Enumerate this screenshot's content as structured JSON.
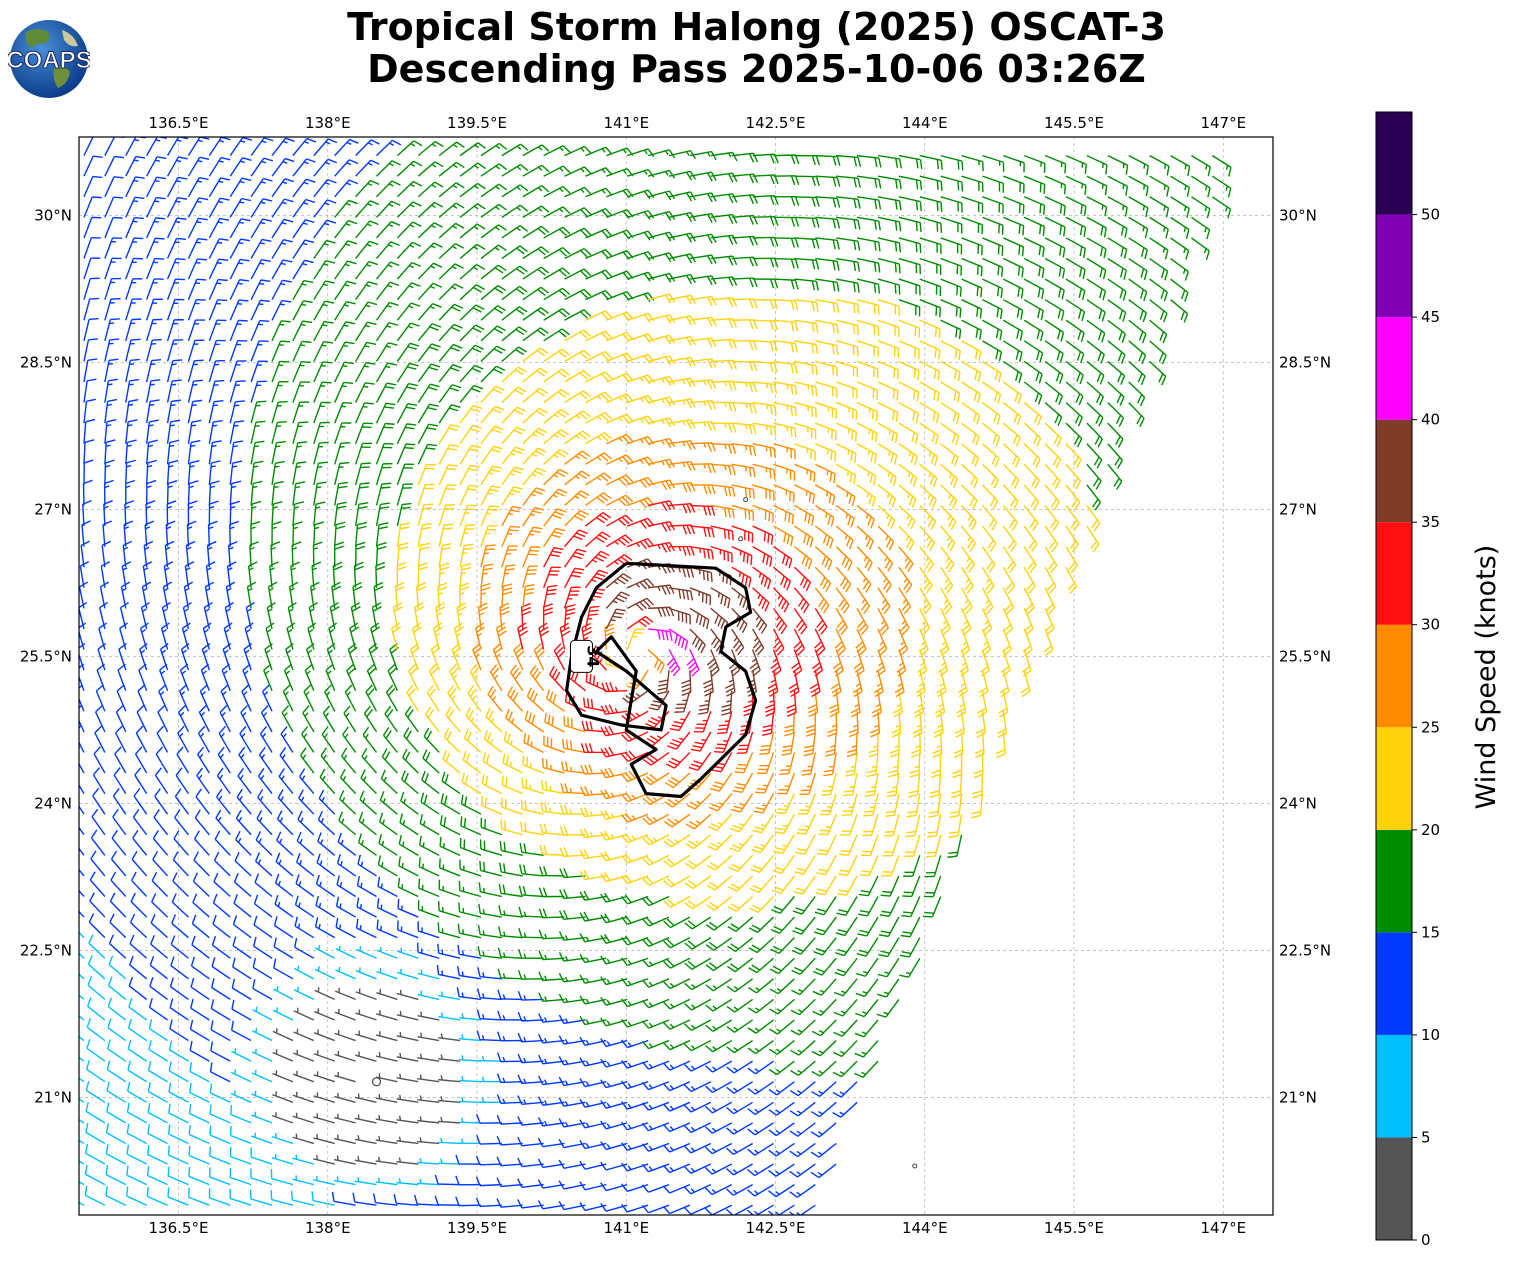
{
  "header": {
    "title_line1": "Tropical Storm Halong (2025) OSCAT-3",
    "title_line2": "Descending Pass 2025-10-06 03:26Z",
    "logo_text": "COAPS"
  },
  "map": {
    "lon_range": [
      135.5,
      147.5
    ],
    "lat_range": [
      19.8,
      30.8
    ],
    "lon_ticks": [
      {
        "value": 136.5,
        "label": "136.5°E"
      },
      {
        "value": 138.0,
        "label": "138°E"
      },
      {
        "value": 139.5,
        "label": "139.5°E"
      },
      {
        "value": 141.0,
        "label": "141°E"
      },
      {
        "value": 142.5,
        "label": "142.5°E"
      },
      {
        "value": 144.0,
        "label": "144°E"
      },
      {
        "value": 145.5,
        "label": "145.5°E"
      },
      {
        "value": 147.0,
        "label": "147°E"
      }
    ],
    "lat_ticks": [
      {
        "value": 30.0,
        "label": "30°N"
      },
      {
        "value": 28.5,
        "label": "28.5°N"
      },
      {
        "value": 27.0,
        "label": "27°N"
      },
      {
        "value": 25.5,
        "label": "25.5°N"
      },
      {
        "value": 24.0,
        "label": "24°N"
      },
      {
        "value": 22.5,
        "label": "22.5°N"
      },
      {
        "value": 21.0,
        "label": "21°N"
      }
    ],
    "grid": true,
    "storm_center": {
      "lon": 141.1,
      "lat": 25.5
    },
    "contour_label": "34",
    "contour_34kt": [
      [
        141.0,
        26.45
      ],
      [
        141.9,
        26.4
      ],
      [
        142.2,
        26.2
      ],
      [
        142.25,
        25.95
      ],
      [
        142.0,
        25.8
      ],
      [
        141.95,
        25.55
      ],
      [
        142.2,
        25.35
      ],
      [
        142.3,
        25.05
      ],
      [
        142.2,
        24.7
      ],
      [
        142.0,
        24.5
      ],
      [
        141.75,
        24.25
      ],
      [
        141.55,
        24.07
      ],
      [
        141.2,
        24.1
      ],
      [
        141.05,
        24.4
      ],
      [
        141.3,
        24.55
      ],
      [
        141.0,
        24.75
      ],
      [
        141.05,
        25.05
      ],
      [
        141.1,
        25.35
      ],
      [
        140.85,
        25.7
      ],
      [
        140.7,
        25.55
      ],
      [
        141.0,
        25.35
      ],
      [
        141.4,
        25.0
      ],
      [
        141.35,
        24.75
      ],
      [
        140.95,
        24.8
      ],
      [
        140.55,
        24.9
      ],
      [
        140.4,
        25.15
      ],
      [
        140.45,
        25.5
      ],
      [
        140.55,
        25.9
      ],
      [
        140.7,
        26.2
      ],
      [
        141.0,
        26.45
      ]
    ],
    "swath_east_edge": [
      {
        "lat": 30.4,
        "lon": 147.0
      },
      {
        "lat": 19.9,
        "lon": 143.0
      }
    ],
    "calm_region": {
      "lon": 138.5,
      "lat": 21.2,
      "radius_deg": 1.3
    },
    "islands": [
      {
        "lon": 142.2,
        "lat": 27.1
      },
      {
        "lon": 142.15,
        "lat": 26.7
      },
      {
        "lon": 143.9,
        "lat": 20.3
      }
    ]
  },
  "colorbar": {
    "label": "Wind Speed (knots)",
    "ticks": [
      {
        "value": 0,
        "label": "0"
      },
      {
        "value": 5,
        "label": "5"
      },
      {
        "value": 10,
        "label": "10"
      },
      {
        "value": 15,
        "label": "15"
      },
      {
        "value": 20,
        "label": "20"
      },
      {
        "value": 25,
        "label": "25"
      },
      {
        "value": 30,
        "label": "30"
      },
      {
        "value": 35,
        "label": "35"
      },
      {
        "value": 40,
        "label": "40"
      },
      {
        "value": 45,
        "label": "45"
      },
      {
        "value": 50,
        "label": "50"
      }
    ],
    "max_value": 55,
    "bins": [
      {
        "min": 0,
        "max": 5,
        "color": "#555555"
      },
      {
        "min": 5,
        "max": 10,
        "color": "#00bfff"
      },
      {
        "min": 10,
        "max": 15,
        "color": "#0039ff"
      },
      {
        "min": 15,
        "max": 20,
        "color": "#008c00"
      },
      {
        "min": 20,
        "max": 25,
        "color": "#ffd20a"
      },
      {
        "min": 25,
        "max": 30,
        "color": "#ff8c00"
      },
      {
        "min": 30,
        "max": 35,
        "color": "#ff0f0f"
      },
      {
        "min": 35,
        "max": 40,
        "color": "#803c28"
      },
      {
        "min": 40,
        "max": 45,
        "color": "#ff00ff"
      },
      {
        "min": 45,
        "max": 50,
        "color": "#8000b3"
      },
      {
        "min": 50,
        "max": 55,
        "color": "#2a0054"
      }
    ]
  }
}
